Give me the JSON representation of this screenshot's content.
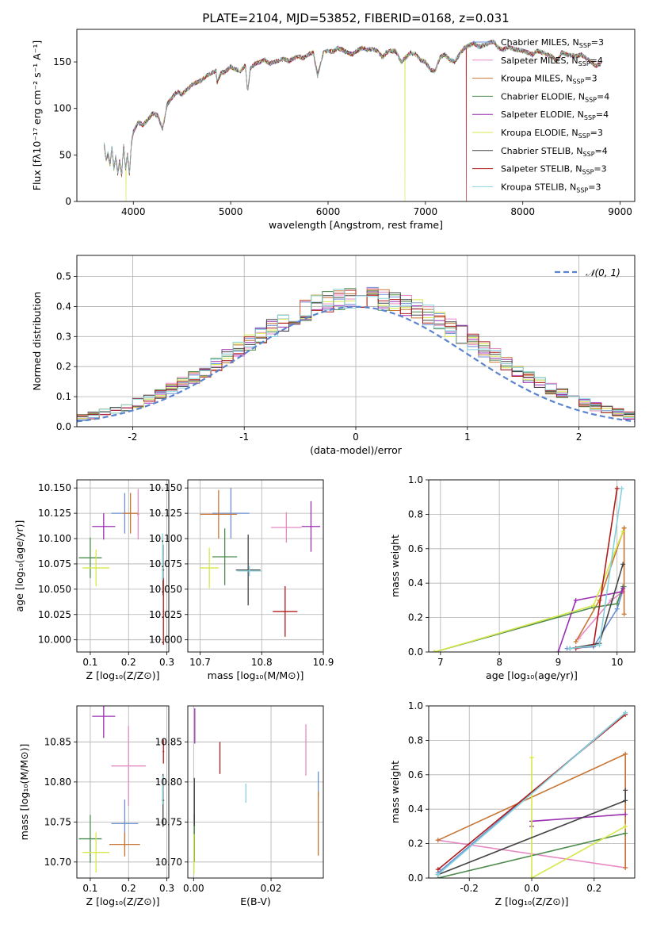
{
  "chart_data": [
    {
      "id": "spectrum",
      "type": "line",
      "title": "PLATE=2104, MJD=53852, FIBERID=0168, z=0.031",
      "xlabel": "wavelength [Angstrom, rest frame]",
      "ylabel": "Flux [fλ10⁻¹⁷ erg cm⁻² s⁻¹ A⁻¹]",
      "xlim": [
        3420,
        9150
      ],
      "ylim": [
        0,
        185
      ],
      "xticks": [
        4000,
        5000,
        6000,
        7000,
        8000,
        9000
      ],
      "yticks": [
        0,
        50,
        100,
        150
      ],
      "grid": false,
      "legend_position": "right",
      "spectrum_x": [
        3700,
        3720,
        3740,
        3760,
        3780,
        3800,
        3820,
        3840,
        3860,
        3880,
        3900,
        3920,
        3940,
        3960,
        3980,
        4000,
        4050,
        4100,
        4150,
        4200,
        4250,
        4300,
        4350,
        4400,
        4450,
        4500,
        4550,
        4600,
        4650,
        4700,
        4750,
        4800,
        4850,
        4861,
        4900,
        4950,
        5000,
        5050,
        5100,
        5150,
        5175,
        5200,
        5250,
        5300,
        5350,
        5400,
        5450,
        5500,
        5550,
        5600,
        5650,
        5700,
        5750,
        5800,
        5850,
        5893,
        5950,
        6000,
        6050,
        6100,
        6150,
        6200,
        6250,
        6300,
        6350,
        6400,
        6450,
        6500,
        6563,
        6600,
        6650,
        6700,
        6750,
        6800,
        6850,
        6900,
        6950,
        7000,
        7050,
        7100,
        7150,
        7200,
        7250,
        7300,
        7350,
        7400,
        7450,
        7500,
        7550,
        7600,
        7650,
        7700,
        7750,
        7800,
        7850,
        7900,
        7950,
        8000,
        8050,
        8100,
        8150,
        8200,
        8250,
        8300,
        8350,
        8400,
        8450,
        8500,
        8550,
        8600,
        8650,
        8700,
        8750,
        8800
      ],
      "spectrum_y": [
        62,
        45,
        52,
        40,
        58,
        35,
        48,
        30,
        44,
        28,
        60,
        35,
        50,
        30,
        62,
        75,
        85,
        82,
        88,
        95,
        92,
        78,
        105,
        112,
        118,
        115,
        120,
        125,
        128,
        130,
        135,
        138,
        140,
        128,
        138,
        140,
        145,
        142,
        140,
        146,
        118,
        142,
        148,
        150,
        152,
        148,
        150,
        152,
        153,
        151,
        154,
        156,
        154,
        158,
        160,
        135,
        160,
        162,
        161,
        165,
        163,
        160,
        158,
        162,
        165,
        163,
        164,
        162,
        155,
        160,
        162,
        161,
        150,
        155,
        160,
        158,
        152,
        150,
        142,
        140,
        155,
        158,
        152,
        150,
        158,
        165,
        168,
        170,
        166,
        168,
        170,
        172,
        165,
        163,
        166,
        164,
        163,
        162,
        160,
        158,
        162,
        160,
        158,
        156,
        150,
        160,
        158,
        157,
        156,
        158,
        154,
        150,
        146,
        148
      ],
      "spectrum_dips": [
        {
          "series": "Kroupa ELODIE",
          "x": 3925,
          "y": 0
        },
        {
          "series": "Kroupa ELODIE",
          "x": 6790,
          "y": 0
        },
        {
          "series": "Salpeter STELIB",
          "x": 7420,
          "y": 0
        }
      ],
      "series": [
        {
          "name": "Chabrier MILES",
          "nssp": "3",
          "color": "#6a8fd4"
        },
        {
          "name": "Salpeter MILES",
          "nssp": "4",
          "color": "#e78ac3"
        },
        {
          "name": "Kroupa MILES",
          "nssp": "3",
          "color": "#c87533"
        },
        {
          "name": "Chabrier ELODIE",
          "nssp": "4",
          "color": "#4d8a4d"
        },
        {
          "name": "Salpeter ELODIE",
          "nssp": "4",
          "color": "#9a2fb0"
        },
        {
          "name": "Kroupa ELODIE",
          "nssp": "3",
          "color": "#d6e84a"
        },
        {
          "name": "Chabrier STELIB",
          "nssp": "4",
          "color": "#444444"
        },
        {
          "name": "Salpeter STELIB",
          "nssp": "3",
          "color": "#b01c1c"
        },
        {
          "name": "Kroupa STELIB",
          "nssp": "3",
          "color": "#86d2dc"
        }
      ]
    },
    {
      "id": "residuals",
      "type": "histogram",
      "xlabel": "(data-model)/error",
      "ylabel": "Normed distribution",
      "xlim": [
        -2.5,
        2.5
      ],
      "ylim": [
        0,
        0.57
      ],
      "xticks": [
        -2,
        -1,
        0,
        1,
        2
      ],
      "yticks": [
        0.0,
        0.1,
        0.2,
        0.3,
        0.4,
        0.5
      ],
      "grid": true,
      "legend_position": "top-right",
      "curve_label": "𝒩(0, 1)",
      "curve_color": "#5b84cf",
      "bin_width": 0.1,
      "bin_start": -2.5
    },
    {
      "id": "age-vs-Z",
      "type": "scatter-errorbar",
      "xlabel": "Z [log₁₀(Z/Z⊙)]",
      "ylabel": "age  [log₁₀(age/yr)]",
      "xlim": [
        0.065,
        0.305
      ],
      "ylim": [
        9.988,
        10.158
      ],
      "xticks": [
        0.1,
        0.2,
        0.3
      ],
      "yticks": [
        10.0,
        10.025,
        10.05,
        10.075,
        10.1,
        10.125,
        10.15
      ],
      "grid": true,
      "points": [
        {
          "color": "#6a8fd4",
          "x": 0.19,
          "y": 10.125,
          "xe": 0.035,
          "ye": 0.02
        },
        {
          "color": "#e78ac3",
          "x": 0.225,
          "y": 10.124,
          "xe": 0.003,
          "ye": 0.025
        },
        {
          "color": "#c87533",
          "x": 0.205,
          "y": 10.125,
          "xe": 0.02,
          "ye": 0.02
        },
        {
          "color": "#4d8a4d",
          "x": 0.1,
          "y": 10.081,
          "xe": 0.03,
          "ye": 0.02
        },
        {
          "color": "#9a2fb0",
          "x": 0.135,
          "y": 10.112,
          "xe": 0.03,
          "ye": 0.013
        },
        {
          "color": "#d6e84a",
          "x": 0.115,
          "y": 10.071,
          "xe": 0.035,
          "ye": 0.018
        },
        {
          "color": "#444444",
          "x": 0.29,
          "y": 10.069,
          "xe": 0.003,
          "ye": 0.025
        },
        {
          "color": "#b01c1c",
          "x": 0.291,
          "y": 10.028,
          "xe": 0.002,
          "ye": 0.033
        },
        {
          "color": "#86d2dc",
          "x": 0.289,
          "y": 10.082,
          "xe": 0.002,
          "ye": 0.023
        }
      ]
    },
    {
      "id": "age-vs-mass",
      "type": "scatter-errorbar",
      "xlabel": "mass [log₁₀(M/M⊙)]",
      "ylabel": "",
      "xlim": [
        10.68,
        10.9
      ],
      "ylim": [
        9.988,
        10.158
      ],
      "xticks": [
        10.7,
        10.8,
        10.9
      ],
      "yticks": [
        10.0,
        10.025,
        10.05,
        10.075,
        10.1,
        10.125,
        10.15
      ],
      "grid": true,
      "points": [
        {
          "color": "#6a8fd4",
          "x": 10.75,
          "y": 10.125,
          "xe": 0.03,
          "ye": 0.025
        },
        {
          "color": "#e78ac3",
          "x": 10.84,
          "y": 10.111,
          "xe": 0.025,
          "ye": 0.015
        },
        {
          "color": "#c87533",
          "x": 10.73,
          "y": 10.124,
          "xe": 0.03,
          "ye": 0.024
        },
        {
          "color": "#4d8a4d",
          "x": 10.74,
          "y": 10.082,
          "xe": 0.02,
          "ye": 0.028
        },
        {
          "color": "#9a2fb0",
          "x": 10.88,
          "y": 10.112,
          "xe": 0.015,
          "ye": 0.025
        },
        {
          "color": "#d6e84a",
          "x": 10.715,
          "y": 10.071,
          "xe": 0.015,
          "ye": 0.02
        },
        {
          "color": "#444444",
          "x": 10.778,
          "y": 10.069,
          "xe": 0.02,
          "ye": 0.035
        },
        {
          "color": "#b01c1c",
          "x": 10.838,
          "y": 10.028,
          "xe": 0.02,
          "ye": 0.025
        },
        {
          "color": "#86d2dc",
          "x": 10.78,
          "y": 10.068,
          "xe": 0.02,
          "ye": 0.005
        }
      ]
    },
    {
      "id": "mass-weight-vs-age",
      "type": "line",
      "xlabel": "age  [log₁₀(age/yr)]",
      "ylabel": "mass weight",
      "xlim": [
        6.8,
        10.3
      ],
      "ylim": [
        0,
        1.0
      ],
      "xticks": [
        7,
        8,
        9,
        10
      ],
      "yticks": [
        0.0,
        0.2,
        0.4,
        0.6,
        0.8,
        1.0
      ],
      "grid": true,
      "series": [
        {
          "color": "#6a8fd4",
          "x": [
            9.15,
            9.6,
            10.0,
            10.12
          ],
          "y": [
            0.02,
            0.03,
            0.25,
            0.38
          ]
        },
        {
          "color": "#e78ac3",
          "x": [
            9.35,
            9.9,
            10.1
          ],
          "y": [
            0.08,
            0.3,
            0.35
          ]
        },
        {
          "color": "#c87533",
          "x": [
            9.3,
            9.7,
            10.12,
            10.12,
            10.12
          ],
          "y": [
            0.06,
            0.3,
            0.72,
            0.22,
            0.72
          ]
        },
        {
          "color": "#4d8a4d",
          "x": [
            6.9,
            9.6,
            10.0,
            10.1
          ],
          "y": [
            0.0,
            0.26,
            0.28,
            0.38
          ]
        },
        {
          "color": "#9a2fb0",
          "x": [
            9.0,
            9.3,
            10.08,
            10.1
          ],
          "y": [
            0.0,
            0.3,
            0.35,
            0.37
          ]
        },
        {
          "color": "#d6e84a",
          "x": [
            6.9,
            9.6,
            10.1
          ],
          "y": [
            0.0,
            0.27,
            0.7
          ]
        },
        {
          "color": "#444444",
          "x": [
            9.2,
            9.7,
            10.1
          ],
          "y": [
            0.02,
            0.05,
            0.51
          ]
        },
        {
          "color": "#b01c1c",
          "x": [
            9.3,
            9.6,
            10.0
          ],
          "y": [
            0.02,
            0.04,
            0.95
          ]
        },
        {
          "color": "#86d2dc",
          "x": [
            9.2,
            9.7,
            10.08
          ],
          "y": [
            0.02,
            0.04,
            0.95
          ]
        }
      ]
    },
    {
      "id": "mass-vs-Z",
      "type": "scatter-errorbar",
      "xlabel": "Z [log₁₀(Z/Z⊙)]",
      "ylabel": "mass [log₁₀(M/M⊙)]",
      "xlim": [
        0.065,
        0.305
      ],
      "ylim": [
        10.68,
        10.895
      ],
      "xticks": [
        0.1,
        0.2,
        0.3
      ],
      "yticks": [
        10.7,
        10.75,
        10.8,
        10.85
      ],
      "grid": true,
      "points": [
        {
          "color": "#6a8fd4",
          "x": 0.19,
          "y": 10.748,
          "xe": 0.035,
          "ye": 0.03
        },
        {
          "color": "#e78ac3",
          "x": 0.2,
          "y": 10.82,
          "xe": 0.045,
          "ye": 0.05
        },
        {
          "color": "#c87533",
          "x": 0.19,
          "y": 10.722,
          "xe": 0.04,
          "ye": 0.015
        },
        {
          "color": "#4d8a4d",
          "x": 0.1,
          "y": 10.729,
          "xe": 0.03,
          "ye": 0.03
        },
        {
          "color": "#9a2fb0",
          "x": 0.135,
          "y": 10.882,
          "xe": 0.03,
          "ye": 0.027
        },
        {
          "color": "#d6e84a",
          "x": 0.115,
          "y": 10.712,
          "xe": 0.035,
          "ye": 0.025
        },
        {
          "color": "#444444",
          "x": 0.29,
          "y": 10.777,
          "xe": 0.003,
          "ye": 0.033
        },
        {
          "color": "#b01c1c",
          "x": 0.291,
          "y": 10.838,
          "xe": 0.002,
          "ye": 0.015
        },
        {
          "color": "#86d2dc",
          "x": 0.289,
          "y": 10.79,
          "xe": 0.002,
          "ye": 0.018
        }
      ]
    },
    {
      "id": "mass-vs-ebv",
      "type": "scatter-errorbar",
      "xlabel": "E(B-V)",
      "ylabel": "",
      "xlim": [
        -0.0015,
        0.0335
      ],
      "ylim": [
        10.68,
        10.895
      ],
      "xticks": [
        0.0,
        0.02
      ],
      "yticks": [
        10.7,
        10.75,
        10.8,
        10.85
      ],
      "grid": true,
      "points": [
        {
          "color": "#6a8fd4",
          "x": 0.0322,
          "y": 10.797,
          "xe": 0,
          "ye": 0.016
        },
        {
          "color": "#e78ac3",
          "x": 0.029,
          "y": 10.84,
          "xe": 0,
          "ye": 0.032
        },
        {
          "color": "#c87533",
          "x": 0.0322,
          "y": 10.748,
          "xe": 0,
          "ye": 0.04
        },
        {
          "color": "#4d8a4d",
          "x": 0.0002,
          "y": 10.73,
          "xe": 0,
          "ye": 0.03
        },
        {
          "color": "#9a2fb0",
          "x": 0.0003,
          "y": 10.87,
          "xe": 0,
          "ye": 0.022
        },
        {
          "color": "#d6e84a",
          "x": 0.0001,
          "y": 10.71,
          "xe": 0,
          "ye": 0.025
        },
        {
          "color": "#444444",
          "x": 0.0002,
          "y": 10.775,
          "xe": 0,
          "ye": 0.03
        },
        {
          "color": "#b01c1c",
          "x": 0.0068,
          "y": 10.83,
          "xe": 0,
          "ye": 0.02
        },
        {
          "color": "#86d2dc",
          "x": 0.0135,
          "y": 10.786,
          "xe": 0,
          "ye": 0.012
        }
      ]
    },
    {
      "id": "mass-weight-vs-Z",
      "type": "line",
      "xlabel": "Z [log₁₀(Z/Z⊙)]",
      "ylabel": "mass weight",
      "xlim": [
        -0.33,
        0.33
      ],
      "ylim": [
        0,
        1.0
      ],
      "xticks": [
        -0.2,
        0.0,
        0.2
      ],
      "yticks": [
        0.0,
        0.2,
        0.4,
        0.6,
        0.8,
        1.0
      ],
      "grid": true,
      "series": [
        {
          "color": "#6a8fd4",
          "x": [
            -0.3,
            0.3
          ],
          "y": [
            0.03,
            0.96
          ]
        },
        {
          "color": "#e78ac3",
          "x": [
            -0.3,
            0.3,
            0.3
          ],
          "y": [
            0.22,
            0.06,
            0.72
          ]
        },
        {
          "color": "#c87533",
          "x": [
            -0.3,
            0.3,
            0.3
          ],
          "y": [
            0.22,
            0.72,
            0.06
          ]
        },
        {
          "color": "#4d8a4d",
          "x": [
            -0.3,
            0.3
          ],
          "y": [
            0.0,
            0.26
          ]
        },
        {
          "color": "#9a2fb0",
          "x": [
            0.0,
            0.0,
            0.3
          ],
          "y": [
            0.3,
            0.33,
            0.37
          ]
        },
        {
          "color": "#d6e84a",
          "x": [
            0.0,
            0.0,
            0.3
          ],
          "y": [
            0.7,
            0.0,
            0.3
          ]
        },
        {
          "color": "#444444",
          "x": [
            -0.3,
            0.3,
            0.3
          ],
          "y": [
            0.02,
            0.45,
            0.51
          ]
        },
        {
          "color": "#b01c1c",
          "x": [
            -0.3,
            0.3
          ],
          "y": [
            0.05,
            0.95
          ]
        },
        {
          "color": "#86d2dc",
          "x": [
            -0.3,
            0.3
          ],
          "y": [
            0.02,
            0.96
          ]
        }
      ]
    }
  ]
}
